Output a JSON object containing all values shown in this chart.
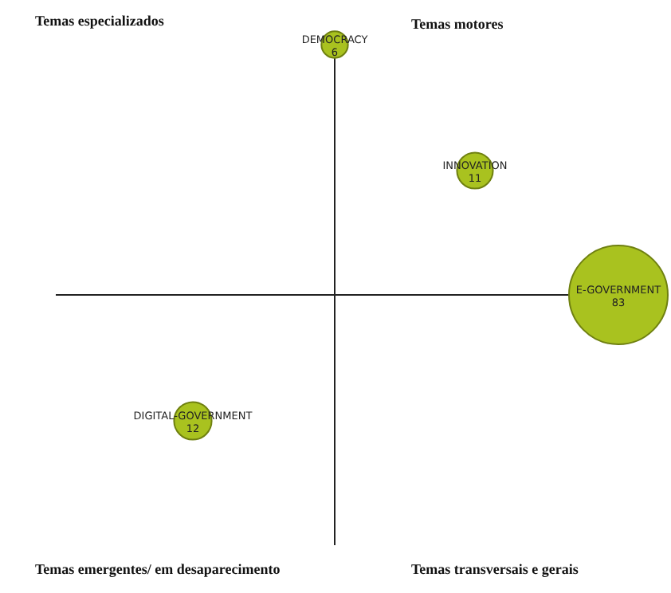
{
  "chart_data": {
    "type": "other",
    "categories": [
      "DEMOCRACY",
      "INNOVATION",
      "E-GOVERNMENT",
      "DIGITAL-GOVERNMENT"
    ],
    "values": [
      6,
      11,
      83,
      12
    ],
    "color": "#a9c21f",
    "data_labels": true,
    "annotations": [
      "Temas especializados",
      "Temas motores",
      "Temas emergentes/ em desaparecimento",
      "Temas transversais e gerais"
    ]
  }
}
